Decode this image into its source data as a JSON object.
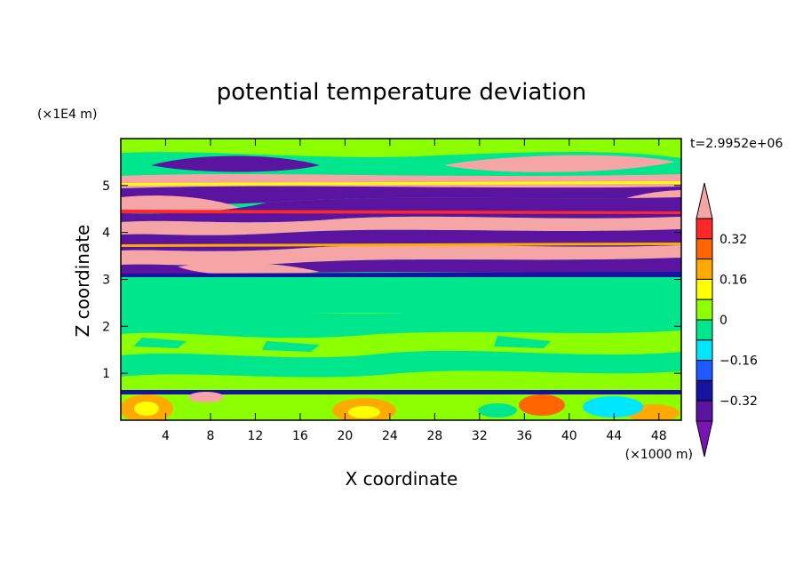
{
  "chart_data": {
    "type": "heatmap",
    "title": "potential temperature deviation",
    "xlabel": "X coordinate",
    "ylabel": "Z coordinate",
    "x_unit": "(×1000 m)",
    "y_unit": "(×1E4 m)",
    "time_label": "t=2.9952e+06",
    "xlim": [
      0,
      50
    ],
    "ylim": [
      0,
      6
    ],
    "x_ticks": [
      "4",
      "8",
      "12",
      "16",
      "20",
      "24",
      "28",
      "32",
      "36",
      "40",
      "44",
      "48"
    ],
    "y_ticks": [
      "1",
      "2",
      "3",
      "4",
      "5"
    ],
    "colorbar": {
      "levels": [
        -0.4,
        -0.32,
        -0.24,
        -0.16,
        -0.08,
        0,
        0.08,
        0.16,
        0.24,
        0.32,
        0.4
      ],
      "tick_labels": [
        "0.32",
        "0.16",
        "0",
        "−0.16",
        "−0.32"
      ],
      "colors": {
        "under": "#7b14b4",
        "b1": "#5a14a0",
        "b2": "#1414a0",
        "b3": "#1e5aff",
        "b4": "#00e6ff",
        "b5": "#00e68c",
        "b6": "#8cff00",
        "b7": "#ffff00",
        "b8": "#ffaa00",
        "b9": "#ff6400",
        "b10": "#ff2828",
        "over": "#f5a5a5"
      }
    },
    "layers": [
      {
        "z": [
          0.0,
          0.6
        ],
        "description": "surface layer with mixed warm and cool anomalies"
      },
      {
        "z": [
          0.6,
          3.1
        ],
        "value_range": [
          -0.08,
          0.08
        ]
      },
      {
        "z": [
          3.1,
          5.3
        ],
        "value_range": [
          -0.4,
          0.4
        ],
        "pattern": "alternating strong warm/cold horizontal bands"
      },
      {
        "z": [
          5.3,
          6.0
        ],
        "value_range": [
          -0.4,
          0.4
        ]
      }
    ]
  }
}
